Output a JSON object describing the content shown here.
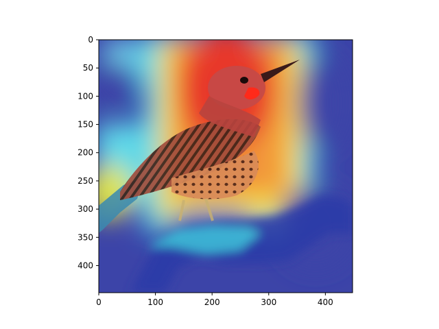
{
  "figure": {
    "subject": "bird on branch with attention heatmap overlay",
    "colormap": "jet",
    "overlay_alpha": 0.55,
    "colors": {
      "background": "#ffffff",
      "axis": "#000000",
      "jet_blue": "#2a2fa0",
      "jet_cyan": "#36d6e8",
      "jet_yellow": "#f3e14a",
      "jet_red": "#e8392a"
    }
  },
  "axes": {
    "x_ticks": [
      0,
      100,
      200,
      300,
      400
    ],
    "y_ticks": [
      0,
      50,
      100,
      150,
      200,
      250,
      300,
      350,
      400
    ],
    "xlim": [
      0,
      448
    ],
    "ylim": [
      448,
      0
    ]
  }
}
